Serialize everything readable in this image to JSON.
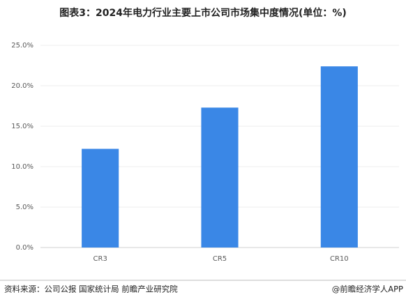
{
  "chart_data": {
    "type": "bar",
    "title": "图表3：2024年电力行业主要上市公司市场集中度情况(单位：%)",
    "categories": [
      "CR3",
      "CR5",
      "CR10"
    ],
    "values": [
      12.2,
      17.3,
      22.4
    ],
    "color": "#3a87e6",
    "ylim": [
      0,
      25
    ],
    "yticks": [
      {
        "value": 0,
        "label": "0.0%"
      },
      {
        "value": 5,
        "label": "5.0%"
      },
      {
        "value": 10,
        "label": "10.0%"
      },
      {
        "value": 15,
        "label": "15.0%"
      },
      {
        "value": 20,
        "label": "20.0%"
      },
      {
        "value": 25,
        "label": "25.0%"
      }
    ],
    "grid": true,
    "source": "资料来源：公司公报 国家统计局 前瞻产业研究院",
    "credit": "@前瞻经济学人APP"
  }
}
